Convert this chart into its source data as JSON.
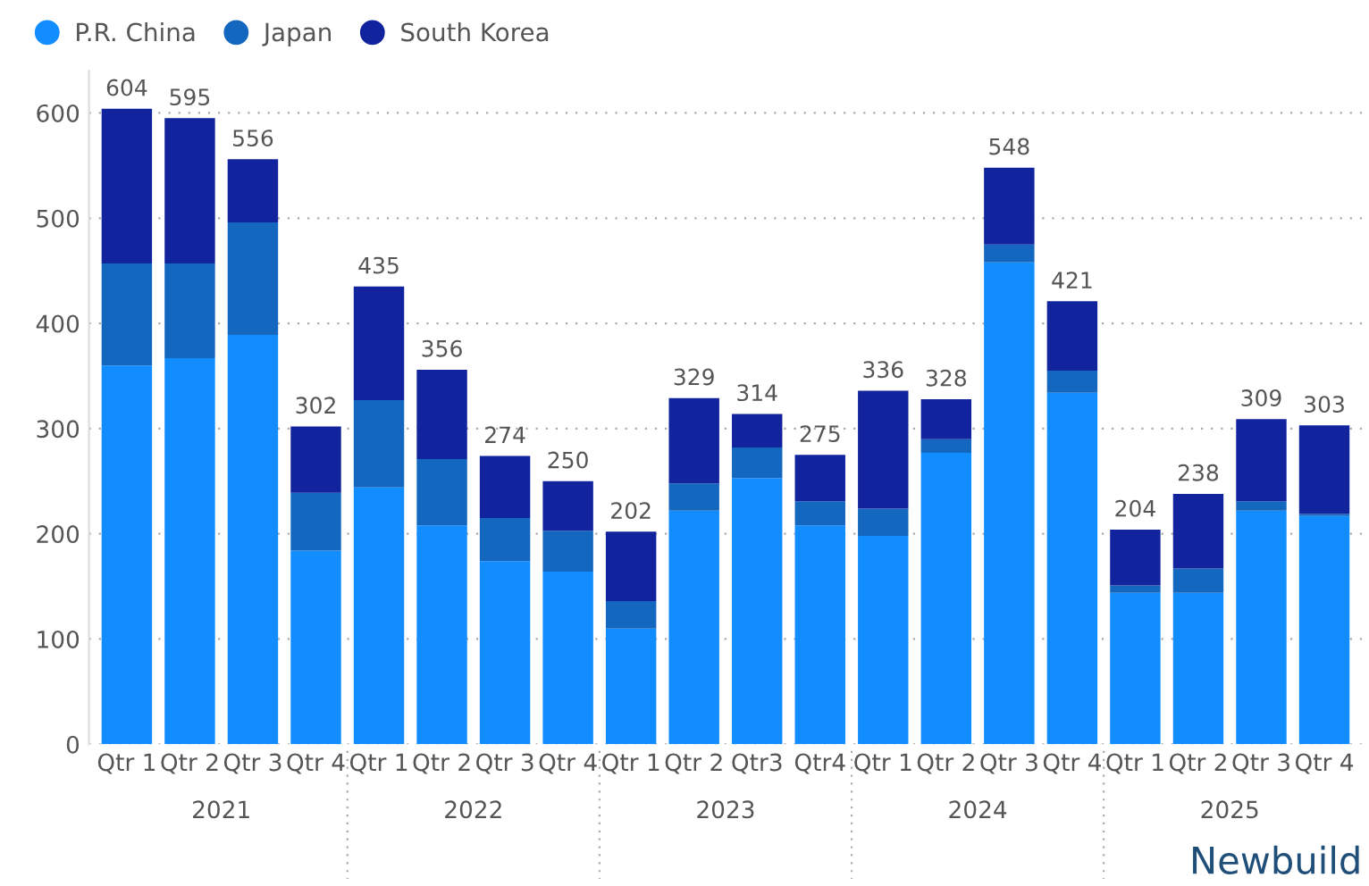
{
  "chart_data": {
    "type": "bar",
    "stacked": true,
    "categories": [
      "Qtr 1",
      "Qtr 2",
      "Qtr 3",
      "Qtr 4",
      "Qtr 1",
      "Qtr 2",
      "Qtr 3",
      "Qtr 4",
      "Qtr 1",
      "Qtr 2",
      "Qtr3",
      "Qtr4",
      "Qtr 1",
      "Qtr 2",
      "Qtr 3",
      "Qtr 4",
      "Qtr 1",
      "Qtr 2",
      "Qtr 3",
      "Qtr 4"
    ],
    "series": [
      {
        "name": "P.R. China",
        "color": "#118dff",
        "values": [
          360,
          367,
          389,
          184,
          244,
          208,
          174,
          164,
          110,
          222,
          253,
          208,
          198,
          277,
          458,
          334,
          144,
          144,
          222,
          217
        ]
      },
      {
        "name": "Japan",
        "color": "#1467be",
        "values": [
          97,
          90,
          107,
          55,
          83,
          63,
          41,
          39,
          26,
          26,
          29,
          23,
          26,
          13,
          17,
          21,
          7,
          23,
          9,
          2
        ]
      },
      {
        "name": "South Korea",
        "color": "#12239e",
        "values": [
          147,
          138,
          60,
          63,
          108,
          85,
          59,
          47,
          66,
          81,
          32,
          44,
          112,
          38,
          73,
          66,
          53,
          71,
          78,
          84
        ]
      }
    ],
    "totals": [
      "604",
      "595",
      "556",
      "302",
      "435",
      "356",
      "274",
      "250",
      "202",
      "329",
      "314",
      "275",
      "336",
      "328",
      "548",
      "421",
      "204",
      "238",
      "309",
      "303"
    ],
    "ylim": [
      0,
      640
    ],
    "yticks": [
      0,
      100,
      200,
      300,
      400,
      500,
      600
    ],
    "grid": "y",
    "legend": "top left",
    "annotations": [
      "2021",
      "2022",
      "2023",
      "2024",
      "2025",
      "Newbuild"
    ]
  }
}
